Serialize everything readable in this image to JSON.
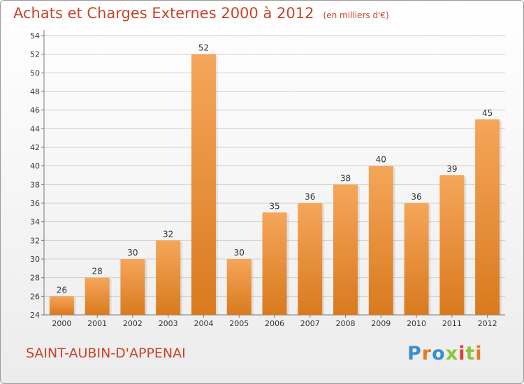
{
  "header": {
    "title": "Achats et Charges Externes 2000 à 2012",
    "unit": "(en milliers d'€)"
  },
  "footer": {
    "commune": "SAINT-AUBIN-D'APPENAI",
    "brand": "Proxiti"
  },
  "colors": {
    "title": "#c8432a",
    "bar_top": "#f5a65a",
    "bar_bottom": "#d97a1e",
    "grid": "#cfcfcf",
    "axis_text": "#333333",
    "brand_letters": [
      "#3a8fd0",
      "#e87a1e",
      "#3a8fd0",
      "#8bc53f",
      "#e83a3a",
      "#8bc53f",
      "#e87a1e"
    ]
  },
  "chart_data": {
    "type": "bar",
    "title": "Achats et Charges Externes 2000 à 2012",
    "subtitle": "(en milliers d'€)",
    "categories": [
      "2000",
      "2001",
      "2002",
      "2003",
      "2004",
      "2005",
      "2006",
      "2007",
      "2008",
      "2009",
      "2010",
      "2011",
      "2012"
    ],
    "values": [
      26,
      28,
      30,
      32,
      52,
      30,
      35,
      36,
      38,
      40,
      36,
      39,
      45
    ],
    "xlabel": "",
    "ylabel": "",
    "ylim": [
      24,
      54
    ],
    "yticks": [
      24,
      26,
      28,
      30,
      32,
      34,
      36,
      38,
      40,
      42,
      44,
      46,
      48,
      50,
      52,
      54
    ],
    "grid": true,
    "data_labels": true
  }
}
